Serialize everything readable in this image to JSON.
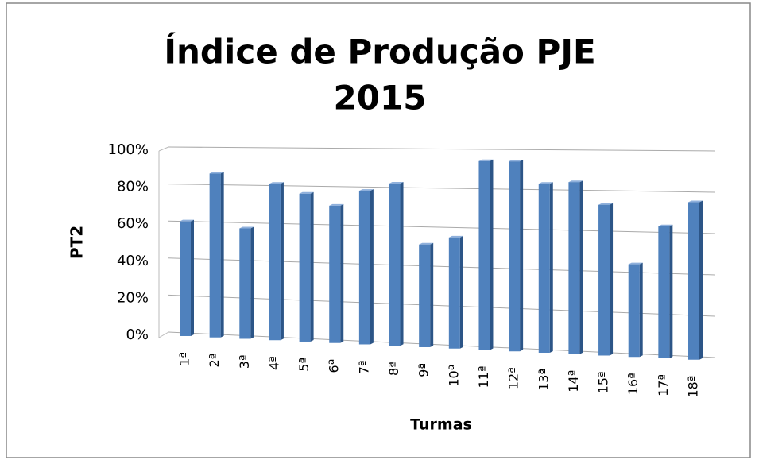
{
  "chart_data": {
    "type": "bar",
    "title": [
      "Índice de Produção PJE",
      "2015"
    ],
    "y_label": "PT2",
    "x_label": "Turmas",
    "categories": [
      "1ª",
      "2ª",
      "3ª",
      "4ª",
      "5ª",
      "6ª",
      "7ª",
      "8ª",
      "9ª",
      "10ª",
      "11ª",
      "12ª",
      "13ª",
      "14ª",
      "15ª",
      "16ª",
      "17ª",
      "18ª"
    ],
    "values": [
      60,
      86,
      57,
      81,
      76,
      70,
      78,
      82,
      51,
      55,
      94,
      94,
      83,
      84,
      73,
      44,
      63,
      75
    ],
    "color": "#4f81bd",
    "ylim": [
      0,
      100
    ],
    "yticks": [
      {
        "value": 0,
        "label": "0%"
      },
      {
        "value": 20,
        "label": "20%"
      },
      {
        "value": 40,
        "label": "40%"
      },
      {
        "value": 60,
        "label": "60%"
      },
      {
        "value": 80,
        "label": "80%"
      },
      {
        "value": 100,
        "label": "100%"
      }
    ],
    "grid": true
  }
}
